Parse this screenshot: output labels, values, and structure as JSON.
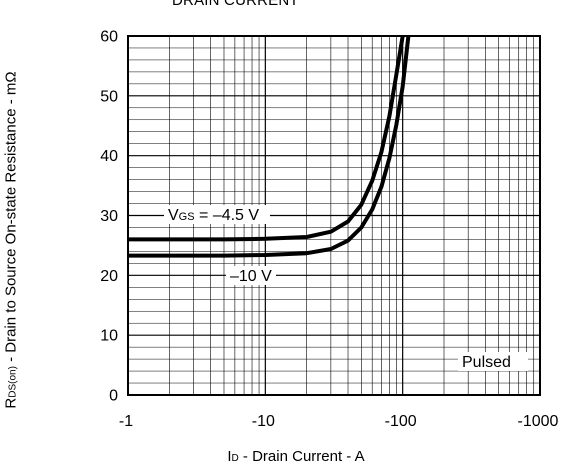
{
  "chart_data": {
    "type": "line",
    "title": "DRAIN CURRENT",
    "xlabel": {
      "main": "I",
      "sub": "D",
      "rest": " - Drain Current - A"
    },
    "ylabel": {
      "main": "R",
      "sub": "DS(on)",
      "rest": " - Drain to Source On-state Resistance - mΩ"
    },
    "x_scale": "log",
    "xlim": [
      -1,
      -1000
    ],
    "ylim": [
      0,
      60
    ],
    "x_tick_labels": [
      "-1",
      "-10",
      "-100",
      "-1000"
    ],
    "x_tick_values": [
      -1,
      -10,
      -100,
      -1000
    ],
    "y_tick_labels": [
      "0",
      "10",
      "20",
      "30",
      "40",
      "50",
      "60"
    ],
    "y_tick_values": [
      0,
      10,
      20,
      30,
      40,
      50,
      60
    ],
    "grid": true,
    "series": [
      {
        "label_main": "V",
        "label_sub": "GS",
        "label_rest": " = –4.5 V",
        "x": [
          -1,
          -5,
          -10,
          -20,
          -30,
          -40,
          -50,
          -60,
          -70,
          -80,
          -90,
          -100
        ],
        "y": [
          26,
          26,
          26.1,
          26.4,
          27.3,
          29.0,
          31.8,
          35.8,
          40.6,
          46.6,
          53.6,
          61
        ]
      },
      {
        "label_main": "",
        "label_sub": "",
        "label_rest": "–10 V",
        "x": [
          -1,
          -5,
          -10,
          -20,
          -30,
          -40,
          -50,
          -60,
          -70,
          -80,
          -90,
          -100,
          -110
        ],
        "y": [
          23.3,
          23.3,
          23.4,
          23.7,
          24.4,
          25.8,
          28.0,
          31.0,
          34.8,
          39.6,
          45.2,
          51.6,
          60
        ]
      }
    ],
    "annotation": "Pulsed"
  }
}
